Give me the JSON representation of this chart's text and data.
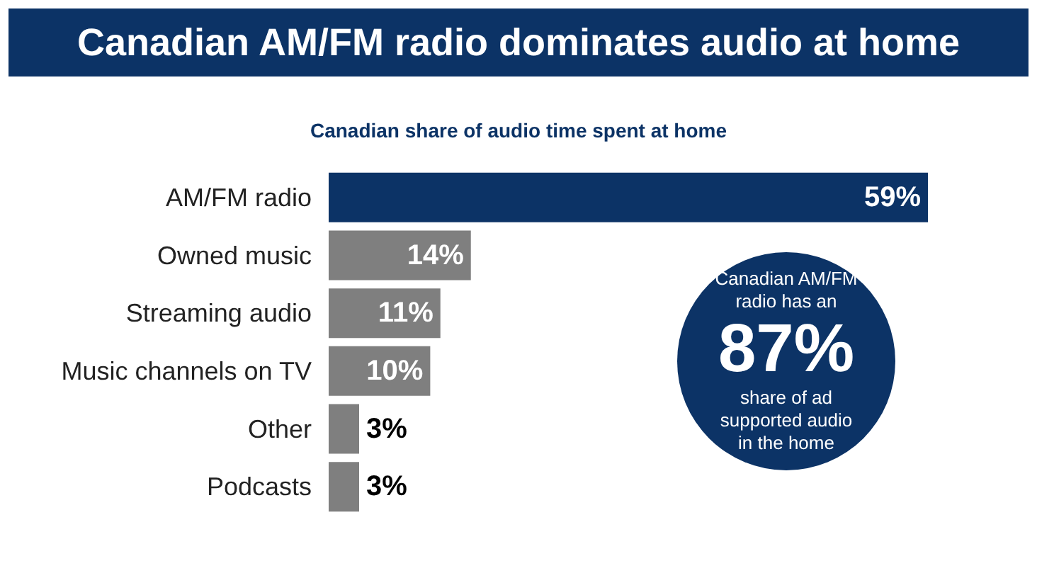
{
  "chart_data": {
    "type": "bar",
    "orientation": "horizontal",
    "title": "Canadian AM/FM radio dominates audio at home",
    "subtitle": "Canadian share of audio time spent at home",
    "categories": [
      "AM/FM radio",
      "Owned music",
      "Streaming audio",
      "Music channels on TV",
      "Other",
      "Podcasts"
    ],
    "values": [
      59,
      14,
      11,
      10,
      3,
      3
    ],
    "colors": [
      "#0c3366",
      "#7f7f7f",
      "#7f7f7f",
      "#7f7f7f",
      "#7f7f7f",
      "#7f7f7f"
    ],
    "value_labels": [
      "59%",
      "14%",
      "11%",
      "10%",
      "3%",
      "3%"
    ],
    "annotations": [
      "Canadian AM/FM radio has an",
      "87%",
      "share of ad supported audio in the home"
    ]
  }
}
